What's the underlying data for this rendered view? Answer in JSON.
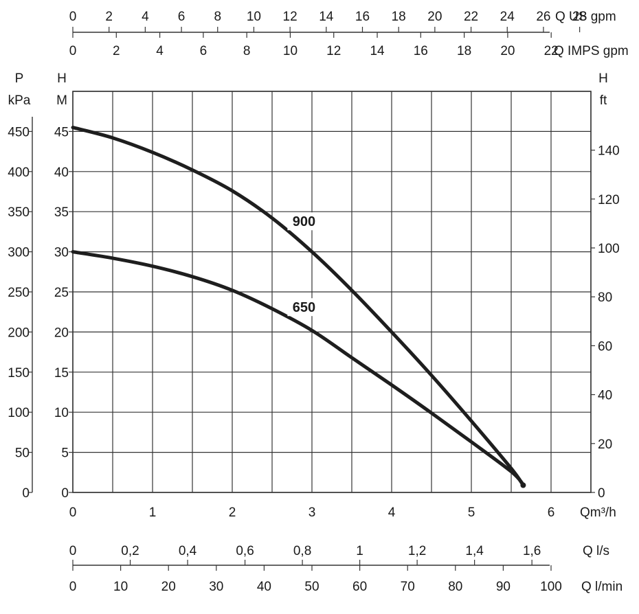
{
  "chart_data": {
    "type": "line",
    "title": "",
    "xlabel": "Qm³/h",
    "ylabel": "H M",
    "xlim": [
      0,
      6.5
    ],
    "ylim": [
      0,
      50
    ],
    "grid": true,
    "series": [
      {
        "name": "900",
        "x": [
          0,
          0.5,
          1,
          1.5,
          2,
          2.5,
          3,
          3.5,
          4,
          4.5,
          5,
          5.5,
          5.65
        ],
        "y": [
          45.5,
          44.2,
          42.4,
          40.2,
          37.6,
          34.2,
          30.0,
          25.2,
          20.0,
          14.6,
          8.9,
          3.0,
          0.9
        ]
      },
      {
        "name": "650",
        "x": [
          0,
          0.5,
          1,
          1.5,
          2,
          2.5,
          3,
          3.5,
          4,
          4.5,
          5,
          5.5,
          5.65
        ],
        "y": [
          30.0,
          29.2,
          28.2,
          26.9,
          25.2,
          22.9,
          20.2,
          16.8,
          13.4,
          9.9,
          6.3,
          2.6,
          1.0
        ]
      }
    ],
    "axes": {
      "left_pressure": {
        "unit_line1": "P",
        "unit_line2": "kPa",
        "ticks": [
          "0",
          "50",
          "100",
          "150",
          "200",
          "250",
          "300",
          "350",
          "400",
          "450"
        ]
      },
      "left_head_m": {
        "unit_line1": "H",
        "unit_line2": "M",
        "ticks": [
          "0",
          "5",
          "10",
          "15",
          "20",
          "25",
          "30",
          "35",
          "40",
          "45"
        ]
      },
      "right_head_ft": {
        "unit_line1": "H",
        "unit_line2": "ft",
        "ticks": [
          "0",
          "20",
          "40",
          "60",
          "80",
          "100",
          "120",
          "140"
        ]
      },
      "bottom_m3h": {
        "unit": "Qm³/h",
        "ticks": [
          "0",
          "1",
          "2",
          "3",
          "4",
          "5",
          "6"
        ]
      },
      "bottom_ls": {
        "unit": "Q l/s",
        "ticks": [
          "0",
          "0,2",
          "0,4",
          "0,6",
          "0,8",
          "1",
          "1,2",
          "1,4",
          "1,6"
        ]
      },
      "bottom_lmin": {
        "unit": "Q l/min",
        "ticks": [
          "0",
          "10",
          "20",
          "30",
          "40",
          "50",
          "60",
          "70",
          "80",
          "90",
          "100"
        ]
      },
      "top_us_gpm": {
        "unit": "Q US gpm",
        "ticks": [
          "0",
          "2",
          "4",
          "6",
          "8",
          "10",
          "12",
          "14",
          "16",
          "18",
          "20",
          "22",
          "24",
          "26",
          "28"
        ]
      },
      "top_imps_gpm": {
        "unit": "Q IMPS gpm",
        "ticks": [
          "0",
          "2",
          "4",
          "6",
          "8",
          "10",
          "12",
          "14",
          "16",
          "18",
          "20",
          "22"
        ]
      }
    },
    "colors": {
      "curve": "#1e1e1e",
      "grid": "#333333",
      "text": "#1a1a1a"
    }
  }
}
